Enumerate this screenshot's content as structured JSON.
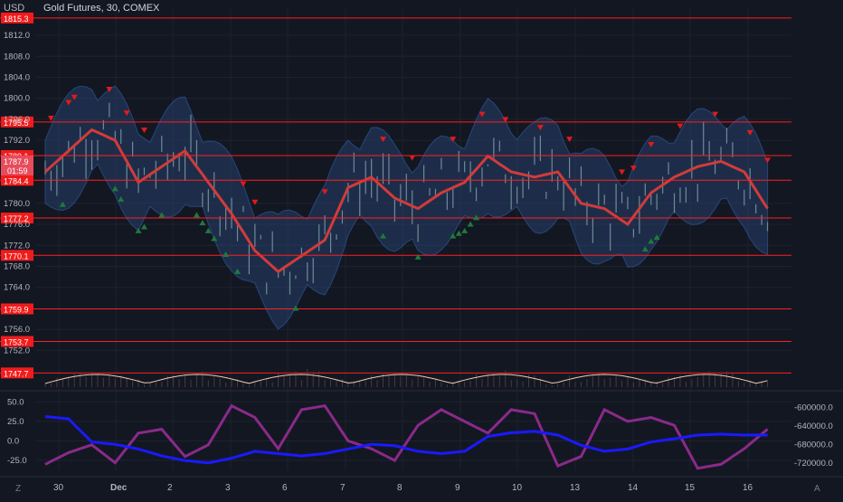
{
  "header": {
    "currency": "USD",
    "title": "Gold Futures, 30, COMEX"
  },
  "colors": {
    "background": "#131722",
    "grid": "#1e222d",
    "candle": "#6e8a98",
    "level_line": "#ff1e1e",
    "level_label_bg": "#f21b1b",
    "ma_line": "#d23b3b",
    "band_fill": "#2a4a7a",
    "sell_marker": "#e01b1b",
    "buy_marker": "#1e7a3e",
    "osc_purple": "#8a2a8a",
    "osc_blue": "#1a1aff",
    "volume_line": "#f0c9b0"
  },
  "price_axis": {
    "min": 1745,
    "max": 1817,
    "ticks": [
      "1812.0",
      "1808.0",
      "1804.0",
      "1800.0",
      "1796.0",
      "1792.0",
      "1780.0",
      "1776.0",
      "1772.0",
      "1768.0",
      "1764.0",
      "1756.0",
      "1752.0"
    ]
  },
  "level_labels": [
    "1815.3",
    "1795.5",
    "1789.1",
    "1784.4",
    "1777.2",
    "1770.1",
    "1759.9",
    "1753.7",
    "1747.7"
  ],
  "current_price": {
    "price": "1787.9",
    "countdown": "01:59"
  },
  "osc_axis": {
    "left_ticks": [
      "50.0",
      "25.0",
      "0.0",
      "-25.0"
    ],
    "right_ticks": [
      "-600000.0",
      "-640000.0",
      "-680000.0",
      "-720000.0"
    ]
  },
  "time_axis": {
    "labels": [
      "30",
      "Dec",
      "2",
      "3",
      "6",
      "7",
      "8",
      "9",
      "10",
      "13",
      "14",
      "15",
      "16"
    ]
  },
  "bottom_corners": {
    "left": "Z",
    "right": "A"
  },
  "chart_data": {
    "type": "line",
    "series": [
      {
        "kind": "moving-average",
        "x": [
          0,
          4,
          8,
          12,
          16,
          20,
          24,
          28,
          32,
          36,
          40,
          44,
          48,
          52,
          56,
          60,
          64,
          68,
          72,
          76,
          80,
          84,
          88,
          92,
          96,
          100,
          104,
          108,
          112,
          116,
          120,
          124
        ],
        "values": [
          1786,
          1790,
          1794,
          1792,
          1784,
          1787,
          1790,
          1784,
          1778,
          1771,
          1767,
          1770,
          1773,
          1783,
          1785,
          1781,
          1779,
          1782,
          1784,
          1789,
          1786,
          1785,
          1786,
          1780,
          1779,
          1776,
          1782,
          1785,
          1787,
          1788,
          1786,
          1779
        ]
      },
      {
        "kind": "oscillator-purple",
        "x": [
          0,
          4,
          8,
          12,
          16,
          20,
          24,
          28,
          32,
          36,
          40,
          44,
          48,
          52,
          56,
          60,
          64,
          68,
          72,
          76,
          80,
          84,
          88,
          92,
          96,
          100,
          104,
          108,
          112,
          116,
          120,
          124
        ],
        "values": [
          -30,
          -15,
          -5,
          -28,
          10,
          15,
          -20,
          -5,
          45,
          30,
          -10,
          40,
          45,
          0,
          -10,
          -25,
          20,
          40,
          25,
          10,
          40,
          35,
          -32,
          -20,
          40,
          25,
          30,
          20,
          -35,
          -30,
          -10,
          15
        ]
      },
      {
        "kind": "cumulative-blue",
        "x": [
          0,
          4,
          8,
          12,
          16,
          20,
          24,
          28,
          32,
          36,
          40,
          44,
          48,
          52,
          56,
          60,
          64,
          68,
          72,
          76,
          80,
          84,
          88,
          92,
          96,
          100,
          104,
          108,
          112,
          116,
          120,
          124
        ],
        "values": [
          -620000,
          -625000,
          -675000,
          -680000,
          -690000,
          -705000,
          -715000,
          -720000,
          -710000,
          -695000,
          -700000,
          -705000,
          -700000,
          -690000,
          -680000,
          -683000,
          -695000,
          -700000,
          -695000,
          -663000,
          -655000,
          -652000,
          -660000,
          -682000,
          -695000,
          -690000,
          -675000,
          -668000,
          -660000,
          -658000,
          -660000,
          -660000
        ]
      }
    ],
    "buy_markers": [
      3,
      12,
      13,
      16,
      17,
      20,
      26,
      27,
      28,
      29,
      31,
      33,
      43,
      58,
      64,
      70,
      71,
      72,
      73,
      74,
      103,
      104,
      105
    ],
    "sell_markers": [
      1,
      4,
      5,
      11,
      14,
      17,
      34,
      36,
      48,
      58,
      63,
      70,
      75,
      79,
      85,
      90,
      99,
      101,
      104,
      109,
      115,
      121,
      124
    ]
  }
}
